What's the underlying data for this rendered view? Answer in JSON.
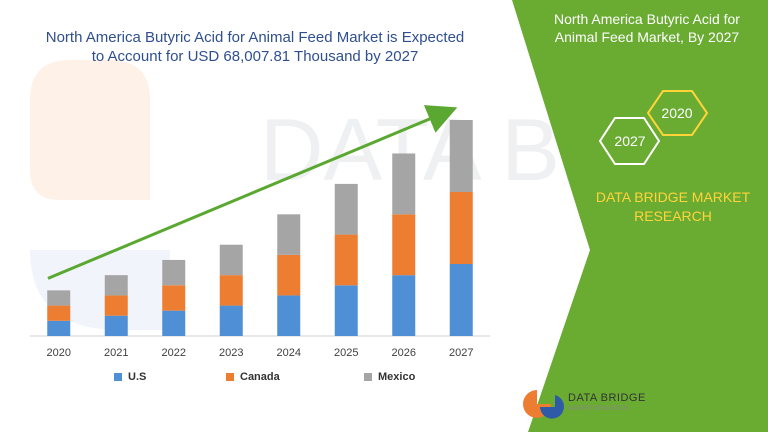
{
  "header": {
    "title_line1": "North America Butyric Acid for Animal Feed Market is Expected",
    "title_line2": "to Account for USD 68,007.81 Thousand by 2027"
  },
  "side_panel": {
    "title_line1": "North America Butyric Acid for",
    "title_line2": "Animal Feed Market, By 2027",
    "badge_2020": "2020",
    "badge_2027": "2027",
    "brand_line1": "DATA BRIDGE MARKET",
    "brand_line2": "RESEARCH",
    "panel_color": "#6aab32",
    "brand_color": "#ffd43a"
  },
  "watermark": "DATA BRIDGE",
  "logo": {
    "name": "DATA BRIDGE",
    "sub": "MARKET RESEARCH"
  },
  "chart_data": {
    "type": "bar",
    "stacked": true,
    "categories": [
      "2020",
      "2021",
      "2022",
      "2023",
      "2024",
      "2025",
      "2026",
      "2027"
    ],
    "series": [
      {
        "name": "U.S",
        "color": "#4f8fd6",
        "values": [
          15,
          20,
          25,
          30,
          40,
          50,
          60,
          71
        ]
      },
      {
        "name": "Canada",
        "color": "#ed7d31",
        "values": [
          15,
          20,
          25,
          30,
          40,
          50,
          60,
          71
        ]
      },
      {
        "name": "Mexico",
        "color": "#a5a5a5",
        "values": [
          15,
          20,
          25,
          30,
          40,
          50,
          60,
          71
        ]
      }
    ],
    "ylim": [
      0,
      213
    ],
    "legend_position": "bottom",
    "grid": false,
    "trend_arrow": true
  }
}
